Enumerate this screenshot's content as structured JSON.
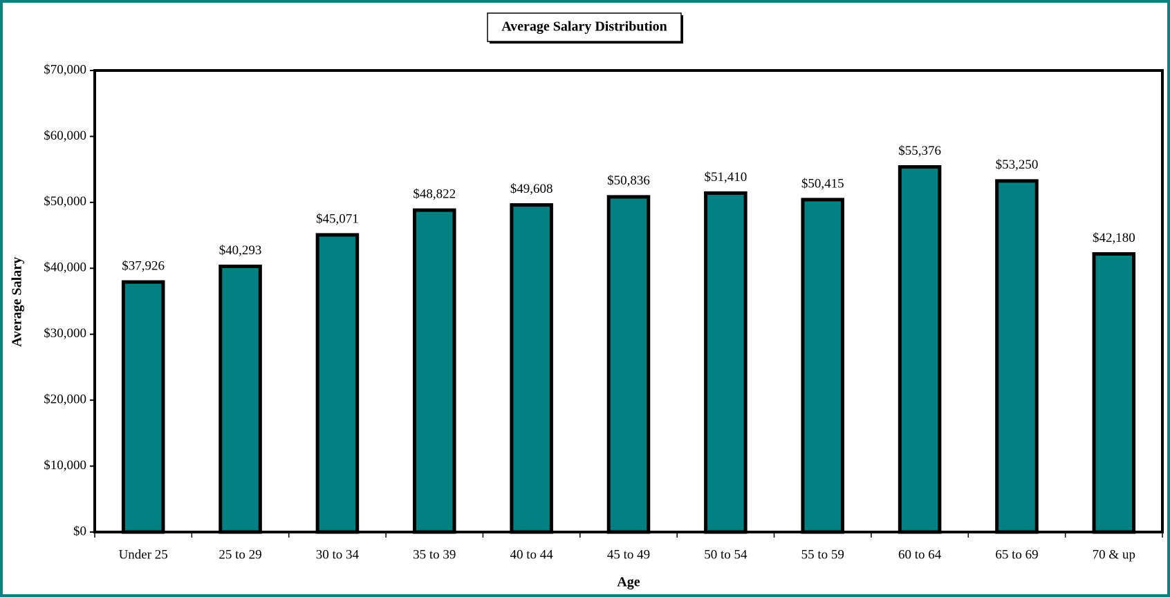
{
  "chart_data": {
    "type": "bar",
    "title": "Average Salary Distribution",
    "x_label": "Age",
    "y_label": "Average Salary",
    "categories": [
      "Under 25",
      "25 to 29",
      "30 to 34",
      "35 to 39",
      "40 to 44",
      "45 to 49",
      "50 to 54",
      "55 to 59",
      "60 to 64",
      "65 to 69",
      "70 & up"
    ],
    "values": [
      37926,
      40293,
      45071,
      48822,
      49608,
      50836,
      51410,
      50415,
      55376,
      53250,
      42180
    ],
    "value_labels": [
      "$37,926",
      "$40,293",
      "$45,071",
      "$48,822",
      "$49,608",
      "$50,836",
      "$51,410",
      "$50,415",
      "$55,376",
      "$53,250",
      "$42,180"
    ],
    "color": "#008080",
    "ylim": [
      0,
      70000
    ],
    "yticks": [
      {
        "value": 0,
        "label": "$0"
      },
      {
        "value": 10000,
        "label": "$10,000"
      },
      {
        "value": 20000,
        "label": "$20,000"
      },
      {
        "value": 30000,
        "label": "$30,000"
      },
      {
        "value": 40000,
        "label": "$40,000"
      },
      {
        "value": 50000,
        "label": "$50,000"
      },
      {
        "value": 60000,
        "label": "$60,000"
      },
      {
        "value": 70000,
        "label": "$70,000"
      }
    ],
    "grid": false
  }
}
